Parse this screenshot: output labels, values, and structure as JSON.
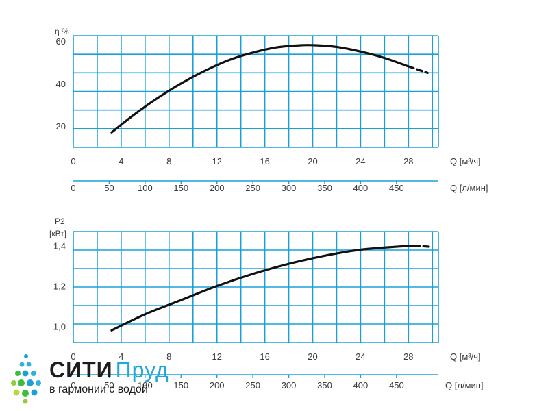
{
  "chart_data": [
    {
      "type": "line",
      "ylabel": "η %",
      "xlabel": "Q [м³/ч]",
      "x2label": "Q [л/мин]",
      "xlim": [
        0,
        30.5
      ],
      "ylim": [
        10,
        62.5
      ],
      "yticks": [
        "60",
        "40",
        "20"
      ],
      "ytick_values": [
        60,
        40,
        20
      ],
      "xticks": [
        "0",
        "4",
        "8",
        "12",
        "16",
        "20",
        "24",
        "28"
      ],
      "xtick_values": [
        0,
        4,
        8,
        12,
        16,
        20,
        24,
        28
      ],
      "x2ticks": [
        "0",
        "50",
        "100",
        "150",
        "200",
        "250",
        "300",
        "350",
        "400",
        "450"
      ],
      "x2tick_values": [
        0,
        50,
        100,
        150,
        200,
        250,
        300,
        350,
        400,
        450
      ],
      "grid": true,
      "series": [
        {
          "style": "solid",
          "x": [
            3.2,
            5,
            7,
            9,
            11,
            13,
            15,
            17,
            19,
            20.2,
            22,
            24,
            26,
            28
          ],
          "y": [
            17,
            25,
            33,
            40,
            46,
            51,
            54.5,
            57,
            58,
            58,
            57.2,
            55,
            52,
            48
          ]
        },
        {
          "style": "dashed",
          "x": [
            28,
            29.6
          ],
          "y": [
            48,
            45
          ]
        }
      ]
    },
    {
      "type": "line",
      "ylabel": "P2",
      "ylabel2": "[кВт]",
      "xlabel": "Q [м³/ч]",
      "x2label": "Q [л/мин]",
      "xlim": [
        0,
        30.5
      ],
      "ylim": [
        0.92,
        1.47
      ],
      "yticks": [
        "1,4",
        "1,2",
        "1,0"
      ],
      "ytick_values": [
        1.4,
        1.2,
        1.0
      ],
      "xticks": [
        "0",
        "4",
        "8",
        "12",
        "16",
        "20",
        "24",
        "28"
      ],
      "xtick_values": [
        0,
        4,
        8,
        12,
        16,
        20,
        24,
        28
      ],
      "x2ticks": [
        "0",
        "50",
        "100",
        "150",
        "200",
        "250",
        "300",
        "350",
        "400",
        "450"
      ],
      "x2tick_values": [
        0,
        50,
        100,
        150,
        200,
        250,
        300,
        350,
        400,
        450
      ],
      "grid": true,
      "series": [
        {
          "style": "solid",
          "x": [
            3.2,
            6,
            9,
            12,
            15,
            18,
            21,
            24,
            27,
            28.5
          ],
          "y": [
            0.98,
            1.06,
            1.13,
            1.2,
            1.26,
            1.31,
            1.35,
            1.38,
            1.395,
            1.4
          ]
        },
        {
          "style": "dashed",
          "x": [
            28.5,
            29.8
          ],
          "y": [
            1.4,
            1.395
          ]
        }
      ]
    }
  ],
  "logo": {
    "brand_part1": "СИТИ",
    "brand_part2": "Пруд",
    "slogan": "в гармонии с водой",
    "color_dark": "#1c1c1c",
    "color_accent": "#22a8d8"
  }
}
